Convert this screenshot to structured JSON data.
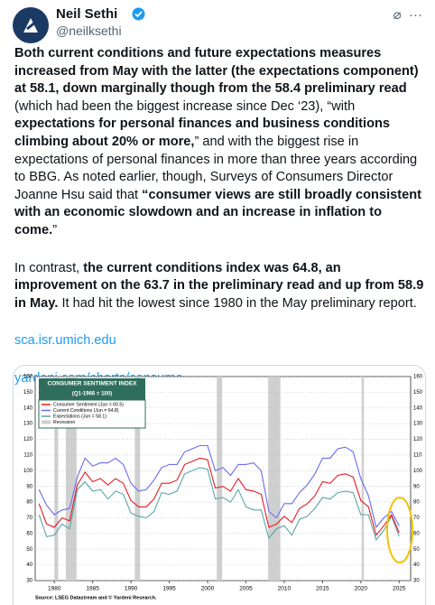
{
  "header": {
    "name": "Neil Sethi",
    "handle": "@neilksethi"
  },
  "paragraphs": [
    {
      "segments": [
        {
          "text": "Both current conditions and future expectations measures increased from May with the latter (the expectations component) at 58.1, down marginally though from the 58.4 preliminary read",
          "bold": true
        },
        {
          "text": " (which had been the biggest increase since Dec ‘23), “with ",
          "bold": false
        },
        {
          "text": "expectations for personal finances and business conditions climbing about 20% or more,",
          "bold": true
        },
        {
          "text": "” and with the biggest rise in expectations of personal finances in more than three years according to BBG. As noted earlier, though, Surveys of Consumers Director Joanne Hsu said that ",
          "bold": false
        },
        {
          "text": "“consumer views are still broadly consistent with an economic slowdown and an increase in inflation to come.",
          "bold": true
        },
        {
          "text": "”",
          "bold": false
        }
      ]
    },
    {
      "segments": [
        {
          "text": "In contrast, ",
          "bold": false
        },
        {
          "text": "the current conditions index was 64.8, an improvement on the 63.7 in the preliminary read and up from 58.9 in May.",
          "bold": true
        },
        {
          "text": " It had hit the lowest since 1980 in the May preliminary report.",
          "bold": false
        }
      ]
    }
  ],
  "links": [
    "sca.isr.umich.edu",
    "yardeni.com/charts/consume..."
  ],
  "chart_data": {
    "type": "line",
    "title": "CONSUMER SENTIMENT INDEX",
    "subtitle": "(Q1-1966 = 100)",
    "source": "Source: LSEG Datastream and © Yardeni Research.",
    "x": [
      1978,
      1979,
      1980,
      1981,
      1982,
      1983,
      1984,
      1985,
      1986,
      1987,
      1988,
      1989,
      1990,
      1991,
      1992,
      1993,
      1994,
      1995,
      1996,
      1997,
      1998,
      1999,
      2000,
      2001,
      2002,
      2003,
      2004,
      2005,
      2006,
      2007,
      2008,
      2009,
      2010,
      2011,
      2012,
      2013,
      2014,
      2015,
      2016,
      2017,
      2018,
      2019,
      2020,
      2021,
      2022,
      2023,
      2024,
      2025
    ],
    "series": [
      {
        "name": "Consumer Sentiment (Jun = 60.5)",
        "color": "#e31b23",
        "values": [
          79,
          66,
          64,
          70,
          68,
          91,
          99,
          93,
          95,
          91,
          95,
          92,
          81,
          77,
          77,
          82,
          92,
          92,
          94,
          104,
          106,
          108,
          107,
          89,
          90,
          87,
          95,
          88,
          87,
          85,
          64,
          66,
          71,
          67,
          76,
          79,
          84,
          93,
          92,
          97,
          98,
          96,
          81,
          77,
          59,
          65,
          72,
          60.5
        ]
      },
      {
        "name": "Current Conditions (Jun = 64.8)",
        "color": "#6b6bf0",
        "values": [
          88,
          78,
          72,
          75,
          76,
          96,
          108,
          103,
          105,
          105,
          108,
          104,
          92,
          87,
          88,
          94,
          102,
          104,
          104,
          112,
          114,
          116,
          116,
          100,
          102,
          97,
          104,
          104,
          105,
          100,
          74,
          70,
          79,
          79,
          86,
          91,
          98,
          108,
          108,
          114,
          115,
          112,
          95,
          84,
          64,
          70,
          74,
          64.8
        ]
      },
      {
        "name": "Expectations (Jun = 58.1)",
        "color": "#5aa6a6",
        "values": [
          72,
          58,
          59,
          66,
          63,
          88,
          93,
          87,
          88,
          82,
          87,
          85,
          73,
          71,
          70,
          74,
          86,
          85,
          87,
          98,
          100,
          102,
          101,
          82,
          83,
          80,
          88,
          77,
          75,
          75,
          57,
          63,
          65,
          59,
          69,
          71,
          76,
          83,
          82,
          86,
          87,
          86,
          72,
          72,
          56,
          62,
          71,
          58.1
        ]
      }
    ],
    "recession_label": "Recession",
    "recession_color": "#cfcfcf",
    "recessions": [
      [
        1980.0,
        1980.5
      ],
      [
        1981.5,
        1982.9
      ],
      [
        1990.5,
        1991.2
      ],
      [
        2001.2,
        2001.9
      ],
      [
        2007.9,
        2009.5
      ],
      [
        2020.1,
        2020.4
      ]
    ],
    "xlim": [
      1977.5,
      2026.5
    ],
    "xticks": [
      1980,
      1985,
      1990,
      1995,
      2000,
      2005,
      2010,
      2015,
      2020,
      2025
    ],
    "ylim": [
      30,
      160
    ],
    "yticks": [
      30,
      40,
      50,
      60,
      70,
      80,
      90,
      100,
      110,
      120,
      130,
      140,
      150,
      160
    ],
    "grid": true
  }
}
